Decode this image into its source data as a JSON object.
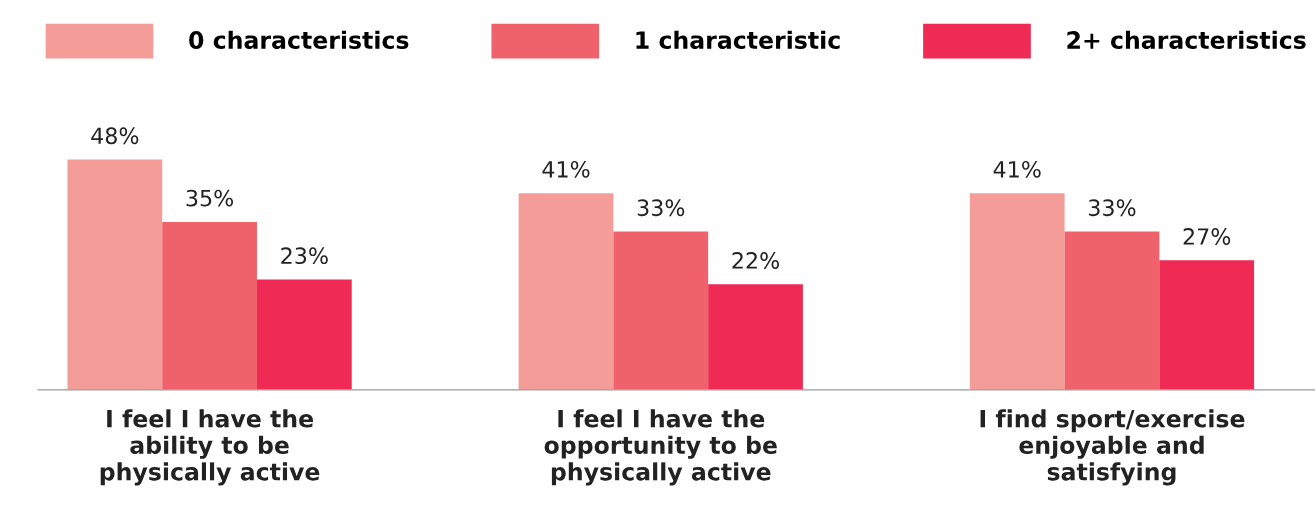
{
  "chart_data": {
    "type": "bar",
    "categories": [
      "I feel I have the\nability to be\nphysically active",
      "I feel I have the\nopportunity to be\nphysically active",
      "I find sport/exercise\nenjoyable and\nsatisfying"
    ],
    "series": [
      {
        "name": "0 characteristics",
        "color": "#f49c98",
        "values": [
          48,
          41,
          41
        ],
        "value_labels": [
          "48%",
          "41%",
          "41%"
        ]
      },
      {
        "name": "1 characteristic",
        "color": "#ef626c",
        "values": [
          35,
          33,
          33
        ],
        "value_labels": [
          "35%",
          "33%",
          "33%"
        ]
      },
      {
        "name": "2+ characteristics",
        "color": "#ee2a55",
        "values": [
          23,
          22,
          27
        ],
        "value_labels": [
          "23%",
          "22%",
          "27%"
        ]
      }
    ],
    "legend": "top",
    "grid": false
  }
}
